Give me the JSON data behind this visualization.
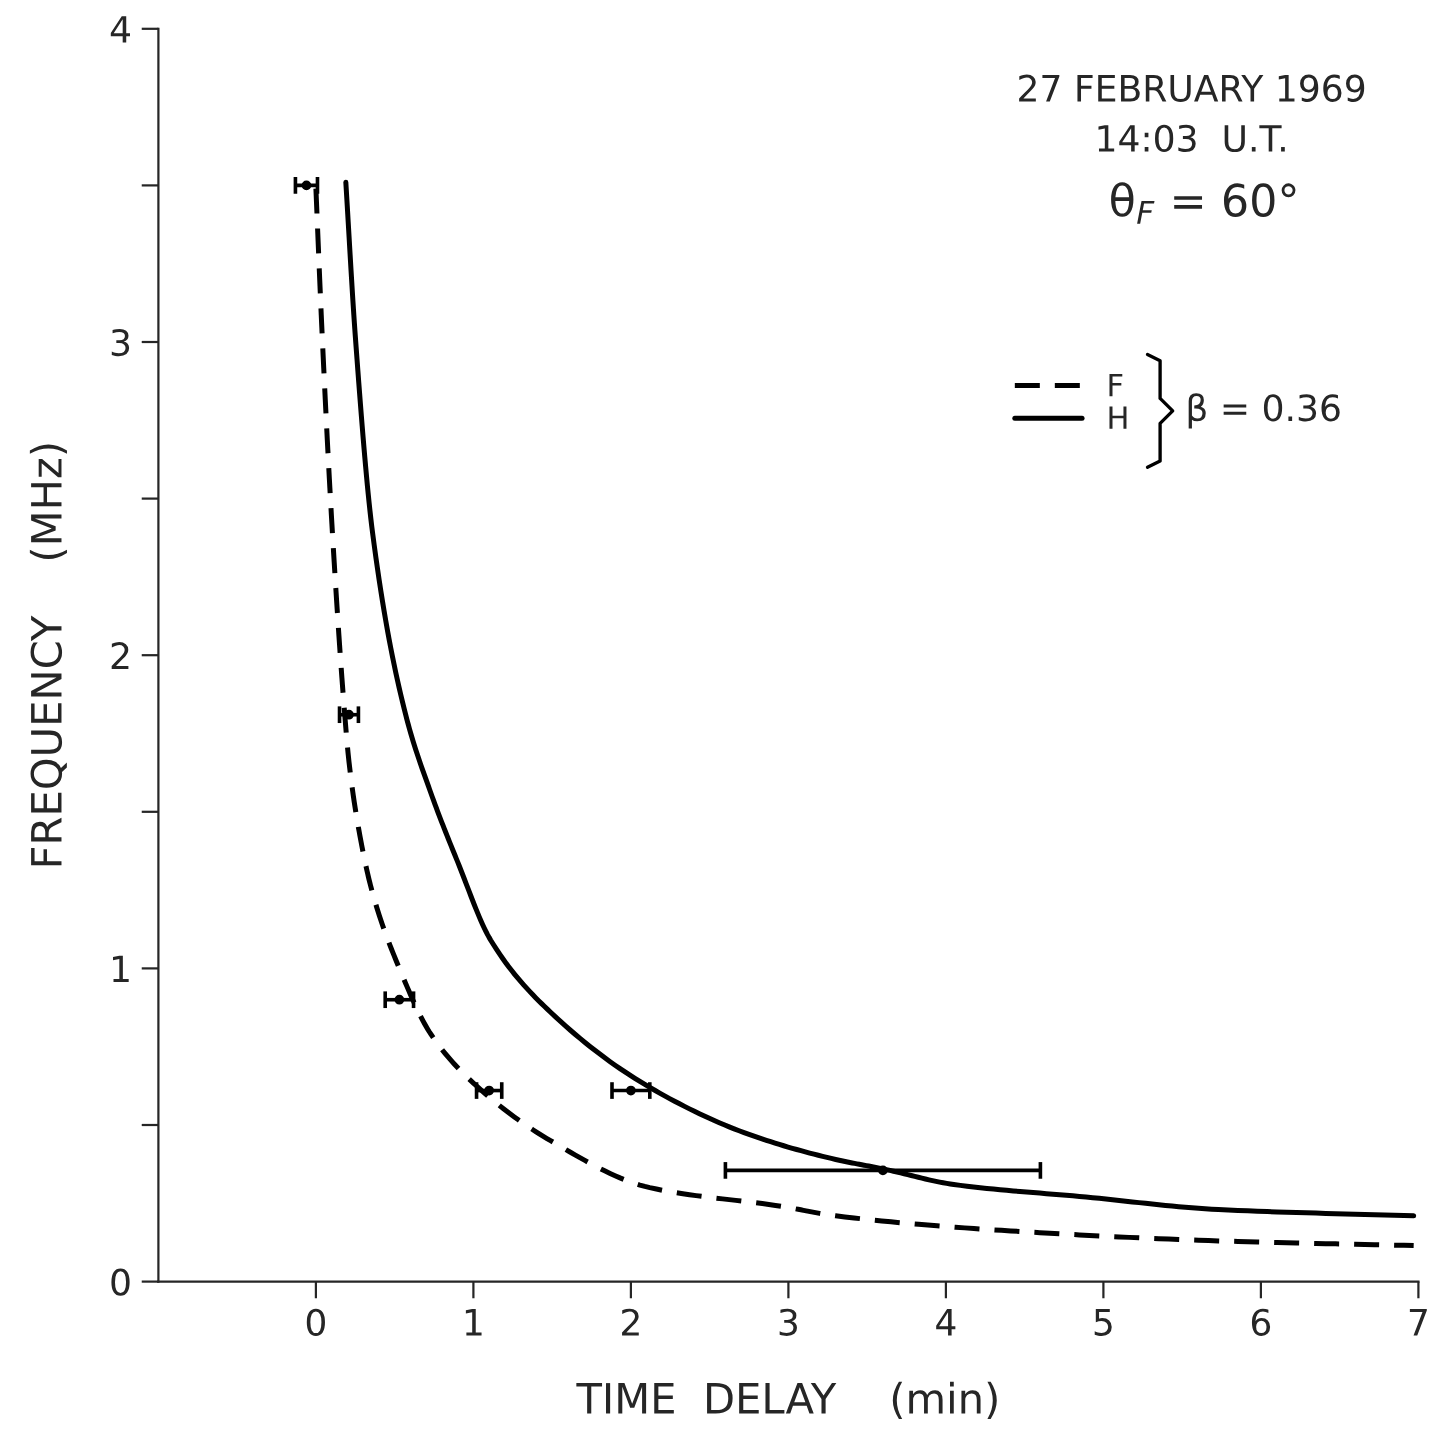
{
  "chart_data": {
    "type": "line",
    "xlabel": "TIME  DELAY    (min)",
    "ylabel": "FREQUENCY    (MHz)",
    "xlim": [
      -1,
      7
    ],
    "ylim": [
      0,
      4
    ],
    "xticks": [
      0,
      1,
      2,
      3,
      4,
      5,
      6,
      7
    ],
    "yticks": [
      0,
      {
        "value": 0.5,
        "label": null
      },
      1,
      {
        "value": 1.5,
        "label": null
      },
      2,
      {
        "value": 2.5,
        "label": null
      },
      3,
      {
        "value": 3.5,
        "label": null
      },
      4
    ],
    "grid": false,
    "legend": "top right",
    "marker": "none",
    "annotations": [
      "27 FEBRUARY 1969",
      "14:03  U.T.",
      "θ$_{F}$ = 60°",
      "β = 0.36"
    ],
    "series": [
      {
        "name": "F",
        "color": "#000000",
        "line_style": "dashed",
        "x": [
          0.0,
          0.04,
          0.105,
          0.18,
          0.21,
          0.27,
          0.36,
          0.53,
          0.73,
          1.03,
          1.49,
          2.12,
          2.96,
          3.3,
          4.47,
          5.73,
          6.97
        ],
        "values": [
          3.49,
          3.02,
          2.39,
          1.83,
          1.66,
          1.45,
          1.24,
          1.0,
          0.79,
          0.62,
          0.45,
          0.3,
          0.24,
          0.21,
          0.16,
          0.13,
          0.115
        ]
      },
      {
        "name": "H",
        "color": "#000000",
        "line_style": "solid",
        "x": [
          0.19,
          0.25,
          0.36,
          0.57,
          0.73,
          0.9,
          1.11,
          1.49,
          2.12,
          2.75,
          3.3,
          3.6,
          4.05,
          4.89,
          5.73,
          6.97
        ],
        "values": [
          3.51,
          3.02,
          2.39,
          1.81,
          1.56,
          1.34,
          1.09,
          0.86,
          0.62,
          0.47,
          0.39,
          0.36,
          0.31,
          0.27,
          0.23,
          0.21
        ]
      },
      {
        "type": "scatter",
        "color": "#000000",
        "marker": "circle",
        "x": [
          -0.06,
          0.21,
          0.53,
          1.1,
          2.0,
          3.6
        ],
        "values": [
          3.5,
          1.81,
          0.9,
          0.61,
          0.61,
          0.355
        ],
        "xerrors": [
          0.07,
          0.06,
          0.09,
          0.08,
          0.12,
          1.0
        ]
      }
    ]
  }
}
